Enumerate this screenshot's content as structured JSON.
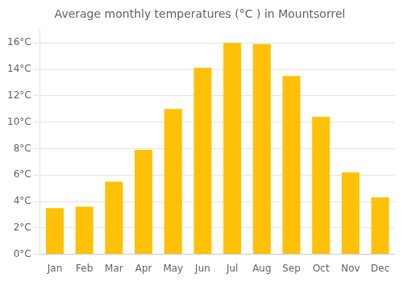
{
  "chart_data": {
    "type": "bar",
    "title": "Average monthly temperatures (°C ) in Mountsorrel",
    "categories": [
      "Jan",
      "Feb",
      "Mar",
      "Apr",
      "May",
      "Jun",
      "Jul",
      "Aug",
      "Sep",
      "Oct",
      "Nov",
      "Dec"
    ],
    "values": [
      3.5,
      3.6,
      5.5,
      7.9,
      11.0,
      14.1,
      16.0,
      15.9,
      13.5,
      10.4,
      6.2,
      4.3
    ],
    "color": "#FFC107",
    "ylim": [
      0,
      17
    ],
    "yticks": [
      {
        "value": 0,
        "label": "0°C"
      },
      {
        "value": 2,
        "label": "2°C"
      },
      {
        "value": 4,
        "label": "4°C"
      },
      {
        "value": 6,
        "label": "6°C"
      },
      {
        "value": 8,
        "label": "8°C"
      },
      {
        "value": 10,
        "label": "10°C"
      },
      {
        "value": 12,
        "label": "12°C"
      },
      {
        "value": 14,
        "label": "14°C"
      },
      {
        "value": 16,
        "label": "16°C"
      }
    ],
    "grid": true
  }
}
